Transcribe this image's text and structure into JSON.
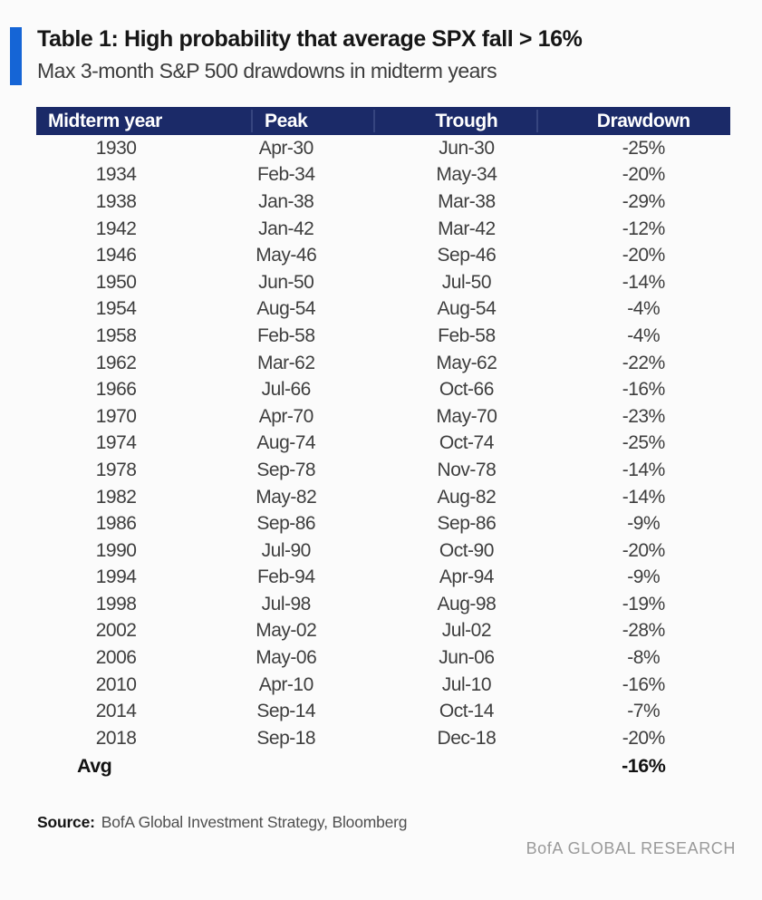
{
  "header": {
    "title": "Table 1: High probability that average SPX fall > 16%",
    "subtitle": "Max 3-month S&P 500 drawdowns in midterm years"
  },
  "chart_data": {
    "type": "table",
    "title": "Table 1: High probability that average SPX fall > 16%",
    "subtitle": "Max 3-month S&P 500 drawdowns in midterm years",
    "columns": [
      "Midterm year",
      "Peak",
      "Trough",
      "Drawdown"
    ],
    "rows": [
      [
        "1930",
        "Apr-30",
        "Jun-30",
        "-25%"
      ],
      [
        "1934",
        "Feb-34",
        "May-34",
        "-20%"
      ],
      [
        "1938",
        "Jan-38",
        "Mar-38",
        "-29%"
      ],
      [
        "1942",
        "Jan-42",
        "Mar-42",
        "-12%"
      ],
      [
        "1946",
        "May-46",
        "Sep-46",
        "-20%"
      ],
      [
        "1950",
        "Jun-50",
        "Jul-50",
        "-14%"
      ],
      [
        "1954",
        "Aug-54",
        "Aug-54",
        "-4%"
      ],
      [
        "1958",
        "Feb-58",
        "Feb-58",
        "-4%"
      ],
      [
        "1962",
        "Mar-62",
        "May-62",
        "-22%"
      ],
      [
        "1966",
        "Jul-66",
        "Oct-66",
        "-16%"
      ],
      [
        "1970",
        "Apr-70",
        "May-70",
        "-23%"
      ],
      [
        "1974",
        "Aug-74",
        "Oct-74",
        "-25%"
      ],
      [
        "1978",
        "Sep-78",
        "Nov-78",
        "-14%"
      ],
      [
        "1982",
        "May-82",
        "Aug-82",
        "-14%"
      ],
      [
        "1986",
        "Sep-86",
        "Sep-86",
        "-9%"
      ],
      [
        "1990",
        "Jul-90",
        "Oct-90",
        "-20%"
      ],
      [
        "1994",
        "Feb-94",
        "Apr-94",
        "-9%"
      ],
      [
        "1998",
        "Jul-98",
        "Aug-98",
        "-19%"
      ],
      [
        "2002",
        "May-02",
        "Jul-02",
        "-28%"
      ],
      [
        "2006",
        "May-06",
        "Jun-06",
        "-8%"
      ],
      [
        "2010",
        "Apr-10",
        "Jul-10",
        "-16%"
      ],
      [
        "2014",
        "Sep-14",
        "Oct-14",
        "-7%"
      ],
      [
        "2018",
        "Sep-18",
        "Dec-18",
        "-20%"
      ]
    ],
    "summary_row": {
      "label": "Avg",
      "peak": "",
      "trough": "",
      "drawdown": "-16%"
    },
    "drawdown_values_pct": [
      -25,
      -20,
      -29,
      -12,
      -20,
      -14,
      -4,
      -4,
      -22,
      -16,
      -23,
      -25,
      -14,
      -14,
      -9,
      -20,
      -9,
      -19,
      -28,
      -8,
      -16,
      -7,
      -20
    ],
    "average_drawdown_pct": -16
  },
  "source": {
    "label": "Source:",
    "text": "BofA Global Investment Strategy, Bloomberg"
  },
  "branding": "BofA GLOBAL RESEARCH",
  "colors": {
    "header_bg": "#1b2a68",
    "header_divider": "#36457f",
    "accent_bar": "#1565d6",
    "row_text": "#3e3e3e",
    "footer_gray": "#9a9a9a"
  }
}
